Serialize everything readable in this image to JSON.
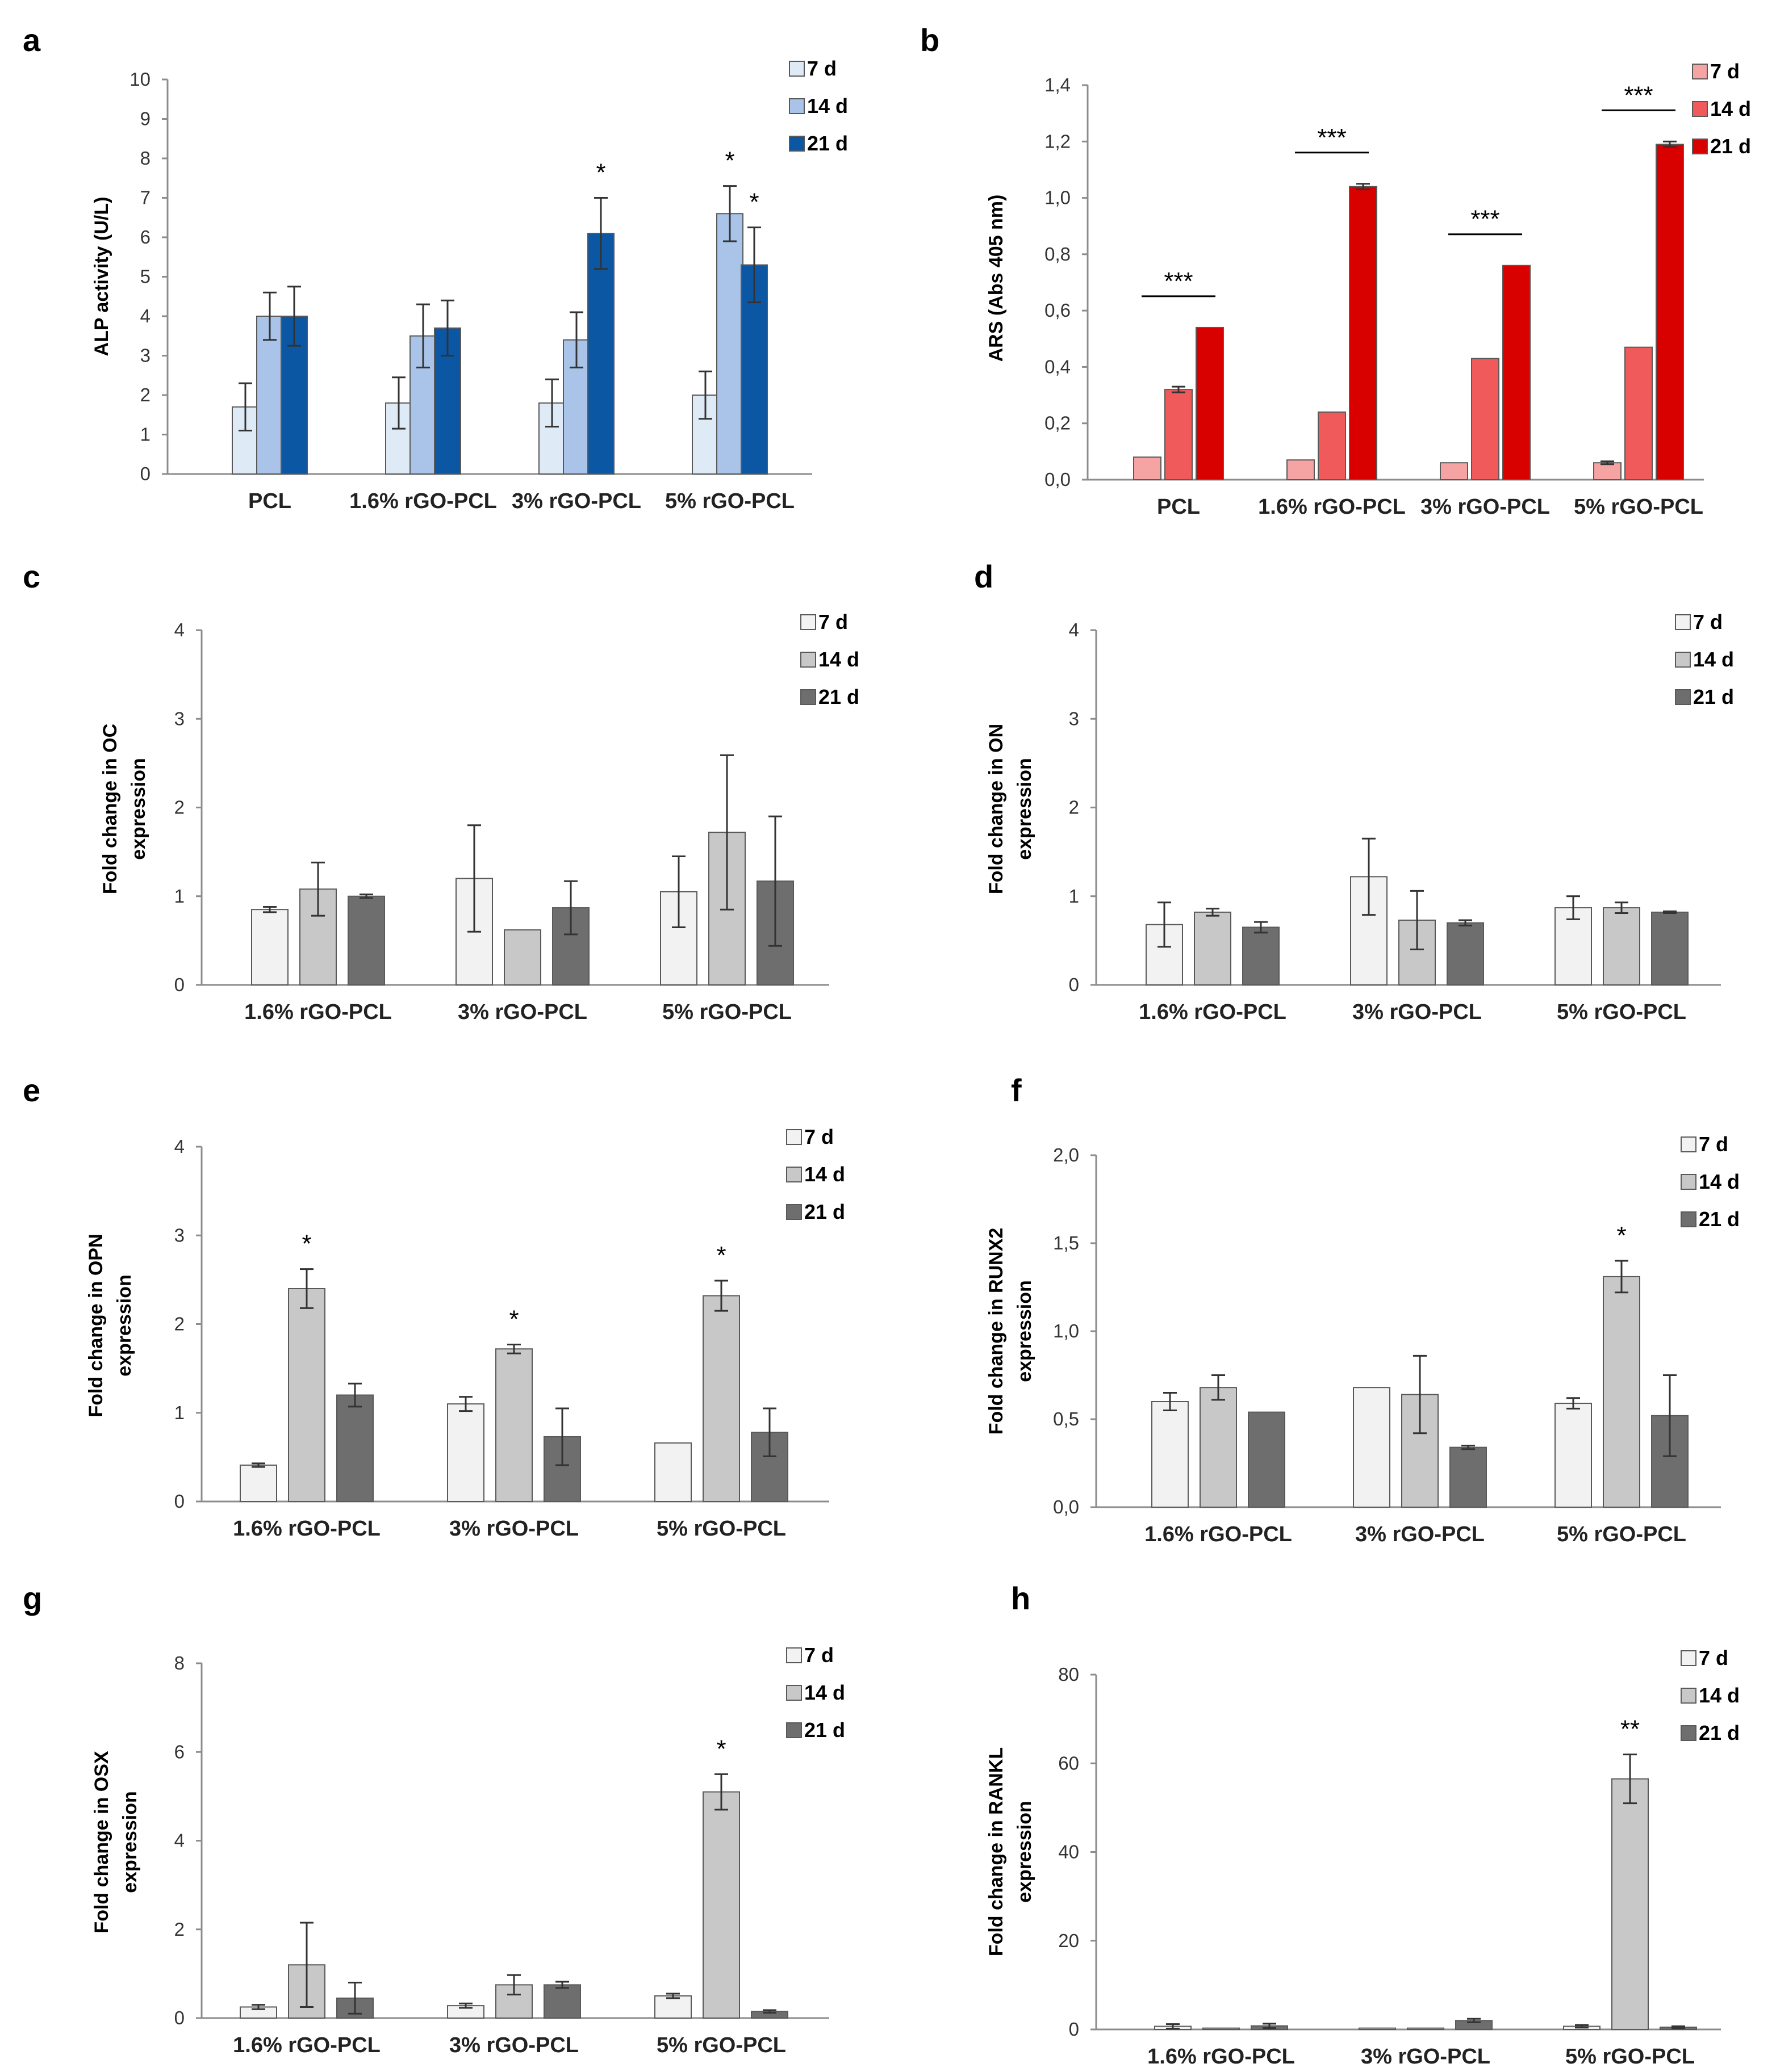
{
  "chart_data": [
    {
      "panel": "a",
      "type": "bar",
      "ylabel": "ALP activity (U/L)",
      "ylim": [
        0,
        10
      ],
      "yticks": [
        0,
        1,
        2,
        3,
        4,
        5,
        6,
        7,
        8,
        9,
        10
      ],
      "categories": [
        "PCL",
        "1.6% rGO-PCL",
        "3% rGO-PCL",
        "5% rGO-PCL"
      ],
      "colors": [
        "#deebf7",
        "#a9c4e8",
        "#0b57a4"
      ],
      "series": [
        {
          "name": "7 d",
          "values": [
            1.7,
            1.8,
            1.8,
            2.0
          ],
          "errors": [
            0.6,
            0.65,
            0.6,
            0.6
          ]
        },
        {
          "name": "14 d",
          "values": [
            4.0,
            3.5,
            3.4,
            6.6
          ],
          "errors": [
            0.6,
            0.8,
            0.7,
            0.7
          ]
        },
        {
          "name": "21 d",
          "values": [
            4.0,
            3.7,
            6.1,
            5.3
          ],
          "errors": [
            0.75,
            0.7,
            0.9,
            0.95
          ]
        }
      ],
      "annotations": [
        {
          "text": "*",
          "category": 2,
          "series": 2
        },
        {
          "text": "*",
          "category": 3,
          "series": 1
        },
        {
          "text": "*",
          "category": 3,
          "series": 2
        }
      ]
    },
    {
      "panel": "b",
      "type": "bar",
      "ylabel": "ARS (Abs 405 nm)",
      "ylim": [
        0,
        1.4
      ],
      "yticks": [
        "0,0",
        "0,2",
        "0,4",
        "0,6",
        "0,8",
        "1,0",
        "1,2",
        "1,4"
      ],
      "categories": [
        "PCL",
        "1.6% rGO-PCL",
        "3% rGO-PCL",
        "5% rGO-PCL"
      ],
      "colors": [
        "#f6a3a3",
        "#f05a5a",
        "#d90000"
      ],
      "series": [
        {
          "name": "7 d",
          "values": [
            0.08,
            0.07,
            0.06,
            0.06
          ],
          "errors": [
            0,
            0,
            0,
            0.005
          ]
        },
        {
          "name": "14 d",
          "values": [
            0.32,
            0.24,
            0.43,
            0.47
          ],
          "errors": [
            0.01,
            0,
            0,
            0
          ]
        },
        {
          "name": "21 d",
          "values": [
            0.54,
            1.04,
            0.76,
            1.19
          ],
          "errors": [
            0,
            0.01,
            0,
            0.01
          ]
        }
      ],
      "annotations": [
        {
          "text": "***",
          "category": 0
        },
        {
          "text": "***",
          "category": 1
        },
        {
          "text": "***",
          "category": 2
        },
        {
          "text": "***",
          "category": 3
        }
      ]
    },
    {
      "panel": "c",
      "type": "bar",
      "ylabel": [
        "Fold change in OC",
        "expression"
      ],
      "ylim": [
        0,
        4
      ],
      "yticks": [
        0,
        1,
        2,
        3,
        4
      ],
      "categories": [
        "1.6% rGO-PCL",
        "3% rGO-PCL",
        "5% rGO-PCL"
      ],
      "colors": [
        "#f2f2f2",
        "#c8c8c8",
        "#6e6e6e"
      ],
      "series": [
        {
          "name": "7 d",
          "values": [
            0.85,
            1.2,
            1.05
          ],
          "errors": [
            0.03,
            0.6,
            0.4
          ]
        },
        {
          "name": "14 d",
          "values": [
            1.08,
            0.62,
            1.72
          ],
          "errors": [
            0.3,
            0,
            0.87
          ]
        },
        {
          "name": "21 d",
          "values": [
            1.0,
            0.87,
            1.17
          ],
          "errors": [
            0.02,
            0.3,
            0.73
          ]
        }
      ],
      "annotations": []
    },
    {
      "panel": "d",
      "type": "bar",
      "ylabel": [
        "Fold change in ON",
        "expression"
      ],
      "ylim": [
        0,
        4
      ],
      "yticks": [
        0,
        1,
        2,
        3,
        4
      ],
      "categories": [
        "1.6% rGO-PCL",
        "3% rGO-PCL",
        "5% rGO-PCL"
      ],
      "colors": [
        "#f2f2f2",
        "#c8c8c8",
        "#6e6e6e"
      ],
      "series": [
        {
          "name": "7 d",
          "values": [
            0.68,
            1.22,
            0.87
          ],
          "errors": [
            0.25,
            0.43,
            0.13
          ]
        },
        {
          "name": "14 d",
          "values": [
            0.82,
            0.73,
            0.87
          ],
          "errors": [
            0.04,
            0.33,
            0.06
          ]
        },
        {
          "name": "21 d",
          "values": [
            0.65,
            0.7,
            0.82
          ],
          "errors": [
            0.06,
            0.03,
            0.01
          ]
        }
      ],
      "annotations": []
    },
    {
      "panel": "e",
      "type": "bar",
      "ylabel": [
        "Fold change in OPN",
        "expression"
      ],
      "ylim": [
        0,
        4
      ],
      "yticks": [
        0,
        1,
        2,
        3,
        4
      ],
      "categories": [
        "1.6% rGO-PCL",
        "3% rGO-PCL",
        "5% rGO-PCL"
      ],
      "colors": [
        "#f2f2f2",
        "#c8c8c8",
        "#6e6e6e"
      ],
      "series": [
        {
          "name": "7 d",
          "values": [
            0.41,
            1.1,
            0.66
          ],
          "errors": [
            0.02,
            0.08,
            0
          ]
        },
        {
          "name": "14 d",
          "values": [
            2.4,
            1.72,
            2.32
          ],
          "errors": [
            0.22,
            0.05,
            0.17
          ]
        },
        {
          "name": "21 d",
          "values": [
            1.2,
            0.73,
            0.78
          ],
          "errors": [
            0.13,
            0.32,
            0.27
          ]
        }
      ],
      "annotations": [
        {
          "text": "*",
          "category": 0,
          "series": 1
        },
        {
          "text": "*",
          "category": 1,
          "series": 1
        },
        {
          "text": "*",
          "category": 2,
          "series": 1
        }
      ]
    },
    {
      "panel": "f",
      "type": "bar",
      "ylabel": [
        "Fold change in RUNX2",
        "expression"
      ],
      "ylim": [
        0,
        2
      ],
      "yticks": [
        "0,0",
        "0,5",
        "1,0",
        "1,5",
        "2,0"
      ],
      "categories": [
        "1.6% rGO-PCL",
        "3% rGO-PCL",
        "5% rGO-PCL"
      ],
      "colors": [
        "#f2f2f2",
        "#c8c8c8",
        "#6e6e6e"
      ],
      "series": [
        {
          "name": "7 d",
          "values": [
            0.6,
            0.68,
            0.59
          ],
          "errors": [
            0.05,
            0,
            0.03
          ]
        },
        {
          "name": "14 d",
          "values": [
            0.68,
            0.64,
            1.31
          ],
          "errors": [
            0.07,
            0.22,
            0.09
          ]
        },
        {
          "name": "21 d",
          "values": [
            0.54,
            0.34,
            0.52
          ],
          "errors": [
            0,
            0.01,
            0.23
          ]
        }
      ],
      "annotations": [
        {
          "text": "*",
          "category": 2,
          "series": 1
        }
      ]
    },
    {
      "panel": "g",
      "type": "bar",
      "ylabel": [
        "Fold change in OSX",
        "expression"
      ],
      "ylim": [
        0,
        8
      ],
      "yticks": [
        0,
        2,
        4,
        6,
        8
      ],
      "categories": [
        "1.6% rGO-PCL",
        "3% rGO-PCL",
        "5% rGO-PCL"
      ],
      "colors": [
        "#f2f2f2",
        "#c8c8c8",
        "#6e6e6e"
      ],
      "series": [
        {
          "name": "7 d",
          "values": [
            0.25,
            0.28,
            0.5
          ],
          "errors": [
            0.05,
            0.05,
            0.05
          ]
        },
        {
          "name": "14 d",
          "values": [
            1.2,
            0.75,
            5.1
          ],
          "errors": [
            0.95,
            0.22,
            0.4
          ]
        },
        {
          "name": "21 d",
          "values": [
            0.45,
            0.75,
            0.15
          ],
          "errors": [
            0.35,
            0.07,
            0.03
          ]
        }
      ],
      "annotations": [
        {
          "text": "*",
          "category": 2,
          "series": 1
        }
      ]
    },
    {
      "panel": "h",
      "type": "bar",
      "ylabel": [
        "Fold change in RANKL",
        "expression"
      ],
      "ylim": [
        0,
        80
      ],
      "yticks": [
        0,
        20,
        40,
        60,
        80
      ],
      "categories": [
        "1.6% rGO-PCL",
        "3% rGO-PCL",
        "5% rGO-PCL"
      ],
      "colors": [
        "#f2f2f2",
        "#c8c8c8",
        "#6e6e6e"
      ],
      "series": [
        {
          "name": "7 d",
          "values": [
            0.7,
            0.3,
            0.7
          ],
          "errors": [
            0.5,
            0,
            0.3
          ]
        },
        {
          "name": "14 d",
          "values": [
            0.3,
            0.3,
            56.5
          ],
          "errors": [
            0,
            0,
            5.5
          ]
        },
        {
          "name": "21 d",
          "values": [
            0.8,
            2.0,
            0.5
          ],
          "errors": [
            0.5,
            0.4,
            0.2
          ]
        }
      ],
      "annotations": [
        {
          "text": "**",
          "category": 2,
          "series": 1
        }
      ]
    }
  ]
}
